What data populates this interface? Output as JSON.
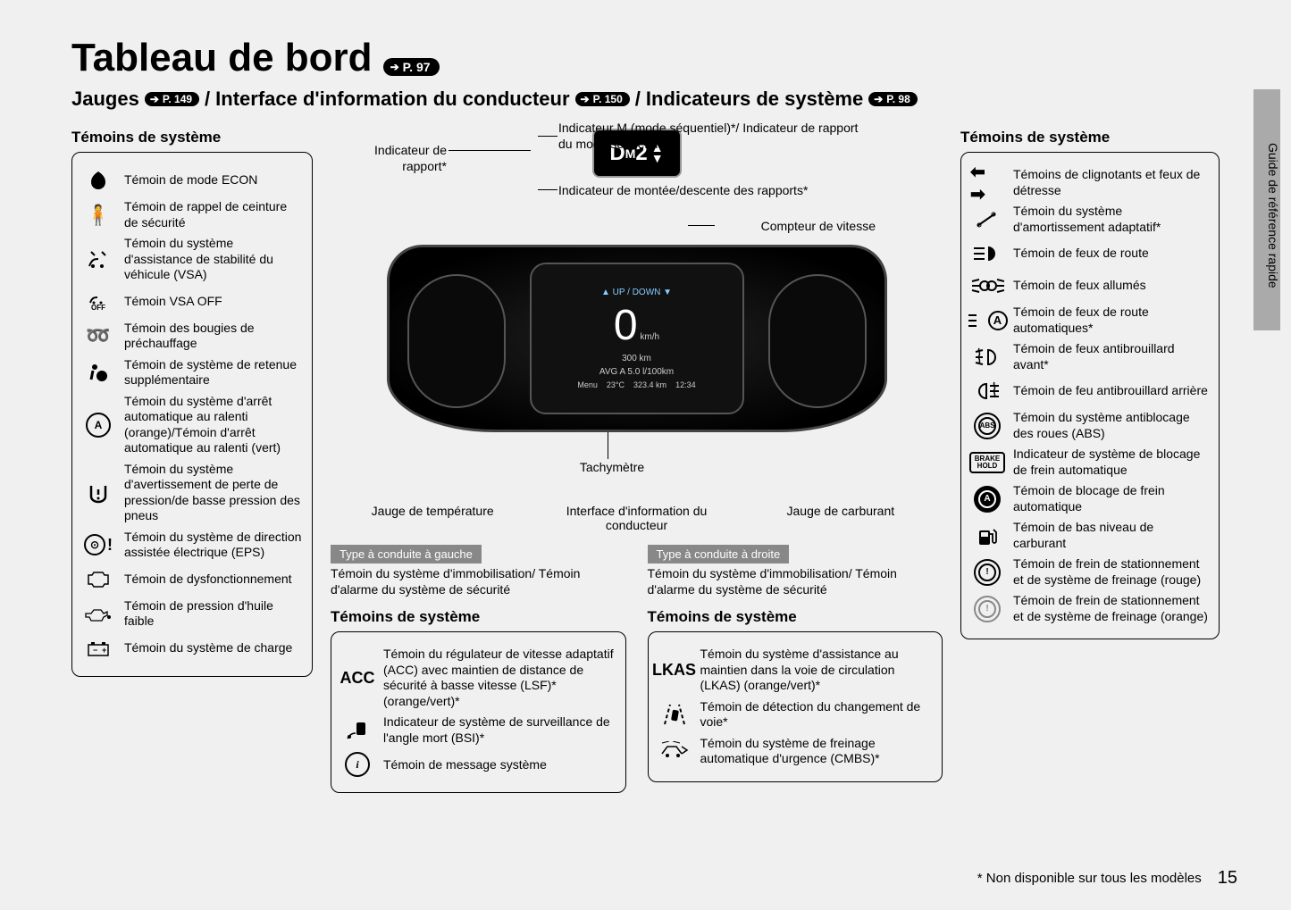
{
  "page": {
    "title": "Tableau de bord",
    "title_pref": "P. 97",
    "subtitle_parts": {
      "gauges": "Jauges",
      "gauges_pref": "P. 149",
      "sep1": "/",
      "dii": "Interface d'information du conducteur",
      "dii_pref": "P. 150",
      "sep2": "/",
      "sys_ind": "Indicateurs de système",
      "sys_ind_pref": "P. 98"
    },
    "side_tab": "Guide de référence rapide",
    "footnote": "* Non disponible sur tous les modèles",
    "page_number": "15"
  },
  "left": {
    "heading": "Témoins de système",
    "items": [
      {
        "icon": "econ",
        "label": "Témoin de mode ECON"
      },
      {
        "icon": "seatbelt",
        "label": "Témoin de rappel de ceinture de sécurité"
      },
      {
        "icon": "vsa",
        "label": "Témoin du système d'assistance de stabilité du véhicule (VSA)"
      },
      {
        "icon": "vsa-off",
        "label": "Témoin VSA OFF"
      },
      {
        "icon": "glow",
        "label": "Témoin des bougies de préchauffage"
      },
      {
        "icon": "srs",
        "label": "Témoin de système de retenue supplémentaire"
      },
      {
        "icon": "idle-stop",
        "label": "Témoin du système d'arrêt automatique au ralenti (orange)/Témoin d'arrêt automatique au ralenti (vert)"
      },
      {
        "icon": "tpms",
        "label": "Témoin du système d'avertissement de perte de pression/de basse pression des pneus"
      },
      {
        "icon": "eps",
        "label": "Témoin du système de direction assistée électrique (EPS)"
      },
      {
        "icon": "malfunction",
        "label": "Témoin de dysfonctionnement"
      },
      {
        "icon": "oil",
        "label": "Témoin de pression d'huile faible"
      },
      {
        "icon": "battery",
        "label": "Témoin du système de charge"
      }
    ]
  },
  "right": {
    "heading": "Témoins de système",
    "items": [
      {
        "icon": "turn-signals",
        "label": "Témoins de clignotants et feux de détresse"
      },
      {
        "icon": "damper",
        "label": "Témoin du système d'amortissement adaptatif*"
      },
      {
        "icon": "high-beam",
        "label": "Témoin de feux de route"
      },
      {
        "icon": "lights-on",
        "label": "Témoin de feux allumés"
      },
      {
        "icon": "auto-high-beam",
        "label": "Témoin de feux de route automatiques*"
      },
      {
        "icon": "fog-front",
        "label": "Témoin de feux antibrouillard avant*"
      },
      {
        "icon": "fog-rear",
        "label": "Témoin de feu antibrouillard arrière"
      },
      {
        "icon": "abs",
        "label": "Témoin du système antiblocage des roues (ABS)"
      },
      {
        "icon": "brake-hold",
        "label": "Indicateur de système de blocage de frein automatique"
      },
      {
        "icon": "brake-hold-active",
        "label": "Témoin de blocage de frein automatique"
      },
      {
        "icon": "low-fuel",
        "label": "Témoin de bas niveau de carburant"
      },
      {
        "icon": "parking-brake-red",
        "label": "Témoin de frein de stationnement et de système de freinage (rouge)"
      },
      {
        "icon": "parking-brake-orange",
        "label": "Témoin de frein de stationnement et de système de freinage (orange)"
      }
    ]
  },
  "mid": {
    "gear_display": {
      "d": "D",
      "m": "M",
      "num": "2"
    },
    "callouts": {
      "gear_indicator": "Indicateur de rapport*",
      "m_indicator": "Indicateur M (mode séquentiel)*/ Indicateur de rapport du mode séquentiel*",
      "shift_updown": "Indicateur de montée/descente des rapports*",
      "speedometer": "Compteur de vitesse",
      "tachometer": "Tachymètre"
    },
    "cluster": {
      "speed": "0",
      "speed_unit": "km/h",
      "odo": "300 km",
      "avg": "AVG  A   5.0 l/100km",
      "temp": "23°C",
      "trip": "323.4 km",
      "time": "12:34",
      "menu": "Menu"
    },
    "below_labels": {
      "temp_gauge": "Jauge de température",
      "dii": "Interface d'information du conducteur",
      "fuel_gauge": "Jauge de carburant"
    },
    "type_left": {
      "tag": "Type à conduite à gauche",
      "desc": "Témoin du système d'immobilisation/ Témoin d'alarme du système de sécurité"
    },
    "type_right": {
      "tag": "Type à conduite à droite",
      "desc": "Témoin du système d'immobilisation/ Témoin d'alarme du système de sécurité"
    },
    "bottom_left": {
      "heading": "Témoins de système",
      "items": [
        {
          "icon": "ACC",
          "label": "Témoin du régulateur de vitesse adaptatif (ACC) avec maintien de distance de sécurité à basse vitesse (LSF)* (orange/vert)*"
        },
        {
          "icon": "bsi",
          "label": "Indicateur de système de surveillance de l'angle mort (BSI)*"
        },
        {
          "icon": "info",
          "label": "Témoin de message système"
        }
      ]
    },
    "bottom_right": {
      "heading": "Témoins de système",
      "items": [
        {
          "icon": "LKAS",
          "label": "Témoin du système d'assistance au maintien dans la voie de circulation (LKAS) (orange/vert)*"
        },
        {
          "icon": "lane-departure",
          "label": "Témoin de détection du changement de voie*"
        },
        {
          "icon": "cmbs",
          "label": "Témoin du système de freinage automatique d'urgence (CMBS)*"
        }
      ]
    }
  }
}
